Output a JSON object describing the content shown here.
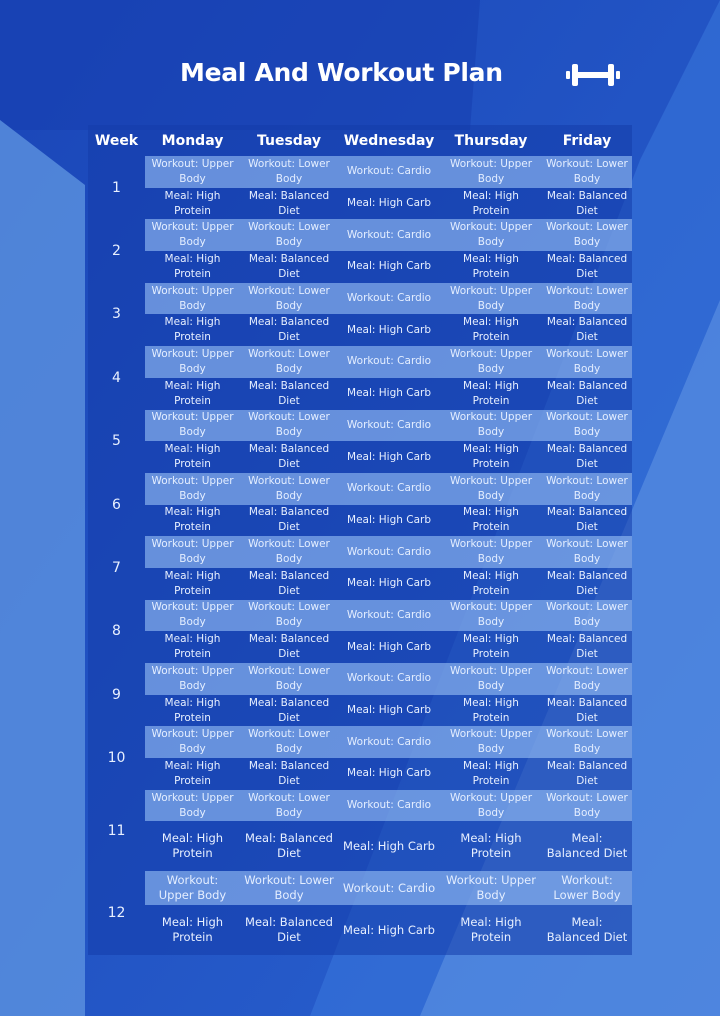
{
  "title": "Meal And Workout Plan",
  "icon": "dumbbell-icon",
  "colors": {
    "background": "#1d4fc2",
    "workout_row": "#8db4ec",
    "text": "#ffffff"
  },
  "headers": [
    "Week",
    "Monday",
    "Tuesday",
    "Wednesday",
    "Thursday",
    "Friday"
  ],
  "weeks": [
    {
      "week": "1",
      "workout": [
        "Workout: Upper Body",
        "Workout: Lower Body",
        "Workout: Cardio",
        "Workout: Upper Body",
        "Workout: Lower Body"
      ],
      "meal": [
        "Meal: High Protein",
        "Meal: Balanced Diet",
        "Meal: High Carb",
        "Meal: High Protein",
        "Meal: Balanced Diet"
      ]
    },
    {
      "week": "2",
      "workout": [
        "Workout: Upper Body",
        "Workout: Lower Body",
        "Workout: Cardio",
        "Workout: Upper Body",
        "Workout: Lower Body"
      ],
      "meal": [
        "Meal: High Protein",
        "Meal: Balanced Diet",
        "Meal: High Carb",
        "Meal: High Protein",
        "Meal: Balanced Diet"
      ]
    },
    {
      "week": "3",
      "workout": [
        "Workout: Upper Body",
        "Workout: Lower Body",
        "Workout: Cardio",
        "Workout: Upper Body",
        "Workout: Lower Body"
      ],
      "meal": [
        "Meal: High Protein",
        "Meal: Balanced Diet",
        "Meal: High Carb",
        "Meal: High Protein",
        "Meal: Balanced Diet"
      ]
    },
    {
      "week": "4",
      "workout": [
        "Workout: Upper Body",
        "Workout: Lower Body",
        "Workout: Cardio",
        "Workout: Upper Body",
        "Workout: Lower Body"
      ],
      "meal": [
        "Meal: High Protein",
        "Meal: Balanced Diet",
        "Meal: High Carb",
        "Meal: High Protein",
        "Meal: Balanced Diet"
      ]
    },
    {
      "week": "5",
      "workout": [
        "Workout: Upper Body",
        "Workout: Lower Body",
        "Workout: Cardio",
        "Workout: Upper Body",
        "Workout: Lower Body"
      ],
      "meal": [
        "Meal: High Protein",
        "Meal: Balanced Diet",
        "Meal: High Carb",
        "Meal: High Protein",
        "Meal: Balanced Diet"
      ]
    },
    {
      "week": "6",
      "workout": [
        "Workout: Upper Body",
        "Workout: Lower Body",
        "Workout: Cardio",
        "Workout: Upper Body",
        "Workout: Lower Body"
      ],
      "meal": [
        "Meal: High Protein",
        "Meal: Balanced Diet",
        "Meal: High Carb",
        "Meal: High Protein",
        "Meal: Balanced Diet"
      ]
    },
    {
      "week": "7",
      "workout": [
        "Workout: Upper Body",
        "Workout: Lower Body",
        "Workout: Cardio",
        "Workout: Upper Body",
        "Workout: Lower Body"
      ],
      "meal": [
        "Meal: High Protein",
        "Meal: Balanced Diet",
        "Meal: High Carb",
        "Meal: High Protein",
        "Meal: Balanced Diet"
      ]
    },
    {
      "week": "8",
      "workout": [
        "Workout: Upper Body",
        "Workout: Lower Body",
        "Workout: Cardio",
        "Workout: Upper Body",
        "Workout: Lower Body"
      ],
      "meal": [
        "Meal: High Protein",
        "Meal: Balanced Diet",
        "Meal: High Carb",
        "Meal: High Protein",
        "Meal: Balanced Diet"
      ]
    },
    {
      "week": "9",
      "workout": [
        "Workout: Upper Body",
        "Workout: Lower Body",
        "Workout: Cardio",
        "Workout: Upper Body",
        "Workout: Lower Body"
      ],
      "meal": [
        "Meal: High Protein",
        "Meal: Balanced Diet",
        "Meal: High Carb",
        "Meal: High Protein",
        "Meal: Balanced Diet"
      ]
    },
    {
      "week": "10",
      "workout": [
        "Workout: Upper Body",
        "Workout: Lower Body",
        "Workout: Cardio",
        "Workout: Upper Body",
        "Workout: Lower Body"
      ],
      "meal": [
        "Meal: High Protein",
        "Meal: Balanced Diet",
        "Meal: High Carb",
        "Meal: High Protein",
        "Meal: Balanced Diet"
      ]
    },
    {
      "week": "11",
      "workout": [
        "Workout: Upper Body",
        "Workout: Lower Body",
        "Workout: Cardio",
        "Workout: Upper Body",
        "Workout: Lower Body"
      ],
      "meal": [
        "Meal: High Protein",
        "Meal: Balanced Diet",
        "Meal: High Carb",
        "Meal: High Protein",
        "Meal: Balanced Diet"
      ]
    },
    {
      "week": "12",
      "workout": [
        "Workout: Upper Body",
        "Workout: Lower Body",
        "Workout: Cardio",
        "Workout: Upper Body",
        "Workout: Lower Body"
      ],
      "meal": [
        "Meal: High Protein",
        "Meal: Balanced Diet",
        "Meal: High Carb",
        "Meal: High Protein",
        "Meal: Balanced Diet"
      ]
    }
  ]
}
